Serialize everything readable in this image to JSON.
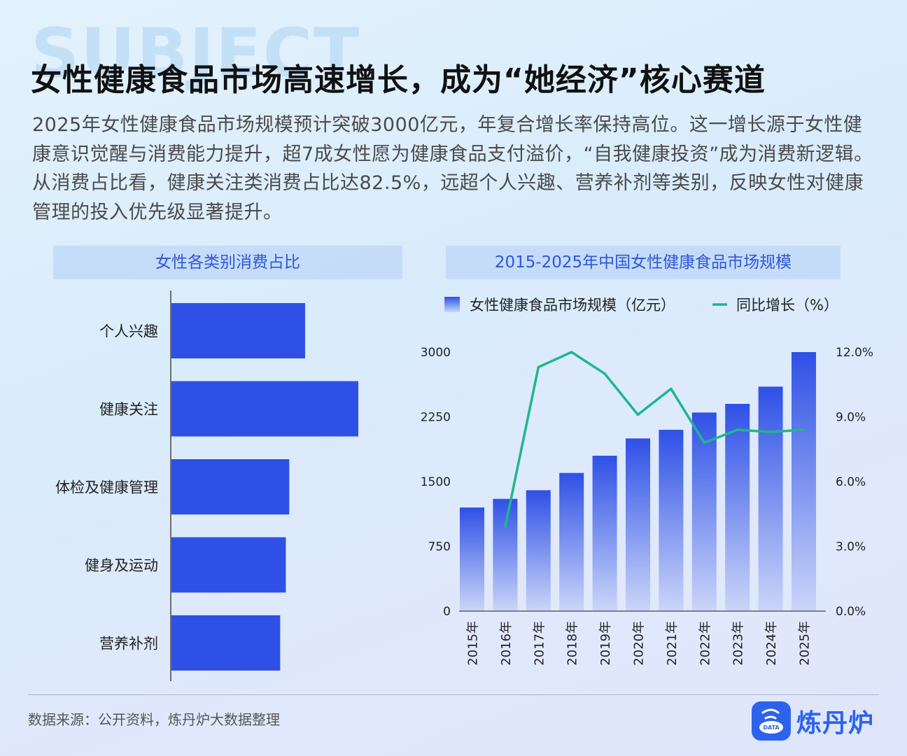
{
  "watermark": "SUBJECT",
  "title": "女性健康食品市场高速增长，成为“她经济”核心赛道",
  "description": "2025年女性健康食品市场规模预计突破3000亿元，年复合增长率保持高位。这一增长源于女性健康意识觉醒与消费能力提升，超7成女性愿为健康食品支付溢价，“自我健康投资”成为消费新逻辑。从消费占比看，健康关注类消费占比达82.5%，远超个人兴趣、营养补剂等类别，反映女性对健康管理的投入优先级显著提升。",
  "source": "数据来源：公开资料，炼丹炉大数据整理",
  "logo": {
    "text": "炼丹炉",
    "badge_text": "DATA"
  },
  "colors": {
    "bar": "#2f50e6",
    "line": "#1fb68b",
    "accent": "#2f56d8"
  },
  "chart_data": [
    {
      "type": "bar",
      "orientation": "horizontal",
      "title": "女性各类别消费占比",
      "categories": [
        "个人兴趣",
        "健康关注",
        "体检及健康管理",
        "健身及运动",
        "营养补剂"
      ],
      "values": [
        59,
        82.5,
        52,
        50.5,
        48
      ],
      "xlim": [
        0,
        82.5
      ],
      "grid": false,
      "tick_labels_visible": false
    },
    {
      "type": "bar",
      "title": "2015-2025年中国女性健康食品市场规模",
      "categories": [
        "2015年",
        "2016年",
        "2017年",
        "2018年",
        "2019年",
        "2020年",
        "2021年",
        "2022年",
        "2023年",
        "2024年",
        "2025年"
      ],
      "series": [
        {
          "name": "女性健康食品市场规模（亿元）",
          "type": "bar",
          "axis": "left",
          "values": [
            1200,
            1300,
            1400,
            1600,
            1800,
            2000,
            2100,
            2300,
            2400,
            2600,
            3000
          ]
        },
        {
          "name": "同比增长（%）",
          "type": "line",
          "axis": "right",
          "values": [
            null,
            3.9,
            11.3,
            12.0,
            11.0,
            9.1,
            10.3,
            7.8,
            8.4,
            8.3,
            8.4
          ]
        }
      ],
      "y_left": {
        "range": [
          0,
          3000
        ],
        "ticks": [
          "0",
          "750",
          "1500",
          "2250",
          "3000"
        ]
      },
      "y_right": {
        "range": [
          0,
          12
        ],
        "ticks": [
          "0.0%",
          "3.0%",
          "6.0%",
          "9.0%",
          "12.0%"
        ]
      },
      "legend_position": "top",
      "grid": false
    }
  ]
}
